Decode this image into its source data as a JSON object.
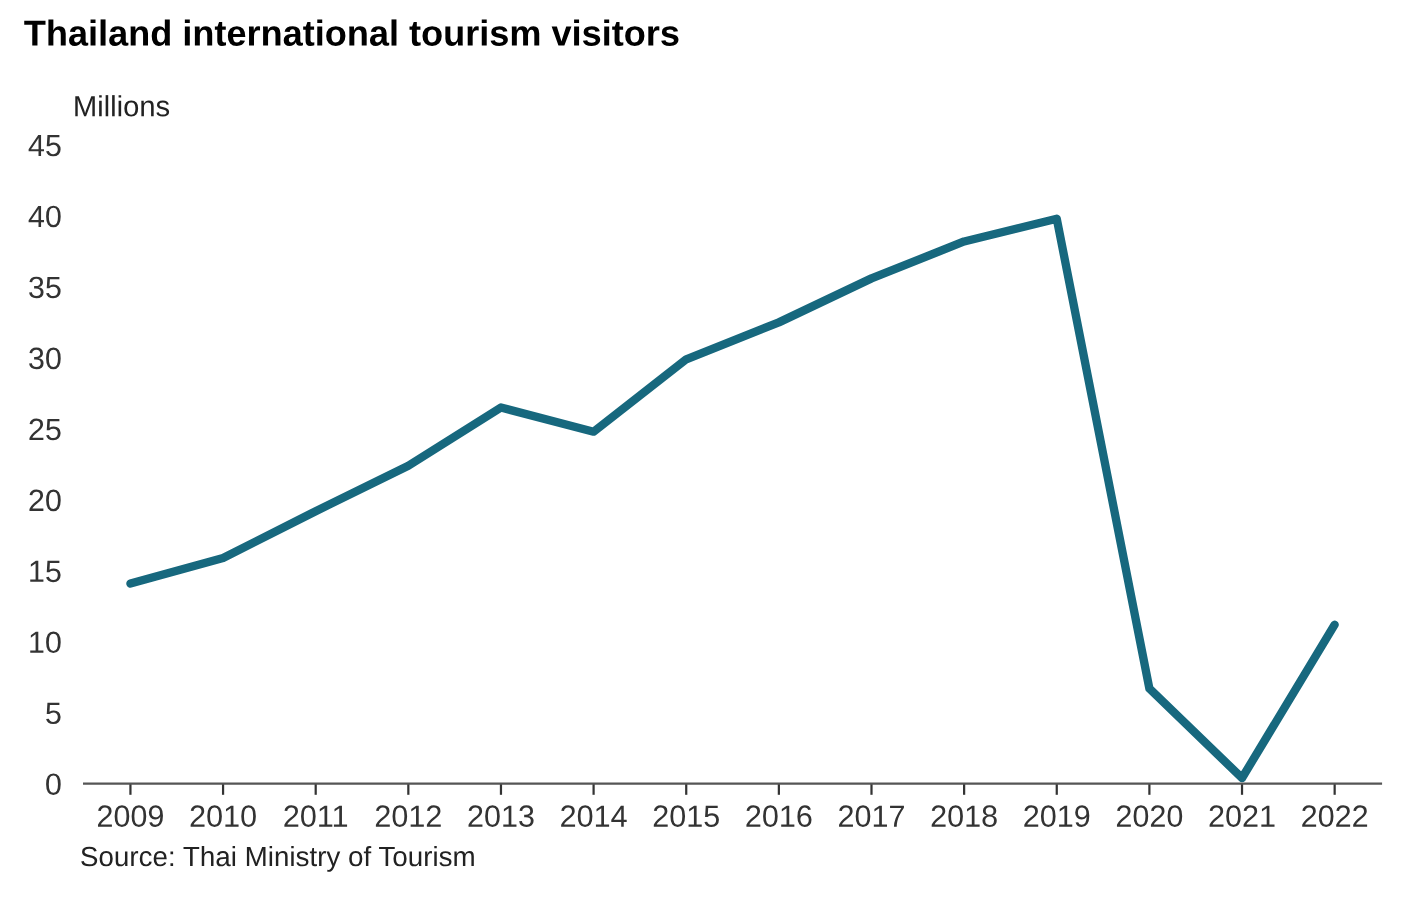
{
  "chart_data": {
    "type": "line",
    "title": "Thailand international tourism visitors",
    "ylabel": "Millions",
    "categories": [
      "2009",
      "2010",
      "2011",
      "2012",
      "2013",
      "2014",
      "2015",
      "2016",
      "2017",
      "2018",
      "2019",
      "2020",
      "2021",
      "2022"
    ],
    "series": [
      {
        "color": "#17687e",
        "values": [
          14.1,
          15.9,
          19.2,
          22.4,
          26.5,
          24.8,
          29.9,
          32.5,
          35.6,
          38.2,
          39.8,
          6.7,
          0.4,
          11.2
        ]
      }
    ],
    "ylim": [
      0,
      45
    ],
    "yticks": [
      0,
      5,
      10,
      15,
      20,
      25,
      30,
      35,
      40,
      45
    ],
    "grid": false,
    "legend": false,
    "annotations": [
      "Source: Thai Ministry of Tourism"
    ]
  }
}
